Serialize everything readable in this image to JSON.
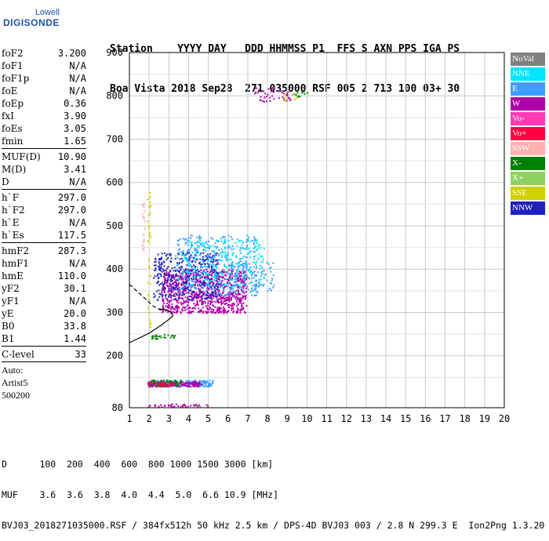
{
  "logo": {
    "top": "Lowell",
    "main": "DIGISONDE"
  },
  "header": {
    "line1": "Station    YYYY DAY   DDD HHMMSS P1  FFS S AXN PPS IGA PS",
    "line2": "Boa Vista 2018 Sep28  271 035000 RSF 005 2 713 100 03+ 30"
  },
  "params": [
    {
      "label": "foF2",
      "value": "3.200"
    },
    {
      "label": "foF1",
      "value": "N/A"
    },
    {
      "label": "foF1p",
      "value": "N/A"
    },
    {
      "label": "foE",
      "value": "N/A"
    },
    {
      "label": "foEp",
      "value": "0.36"
    },
    {
      "label": "fxI",
      "value": "3.90"
    },
    {
      "label": "foEs",
      "value": "3.05"
    },
    {
      "label": "fmin",
      "value": "1.65"
    },
    {
      "label": "MUF(D)",
      "value": "10.90"
    },
    {
      "label": "M(D)",
      "value": "3.41"
    },
    {
      "label": "D",
      "value": "N/A"
    },
    {
      "label": "h`F",
      "value": "297.0"
    },
    {
      "label": "h`F2",
      "value": "297.0"
    },
    {
      "label": "h`E",
      "value": "N/A"
    },
    {
      "label": "h`Es",
      "value": "117.5"
    },
    {
      "label": "hmF2",
      "value": "287.3"
    },
    {
      "label": "hmF1",
      "value": "N/A"
    },
    {
      "label": "hmE",
      "value": "110.0"
    },
    {
      "label": "yF2",
      "value": "30.1"
    },
    {
      "label": "yF1",
      "value": "N/A"
    },
    {
      "label": "yE",
      "value": "20.0"
    },
    {
      "label": "B0",
      "value": "33.8"
    },
    {
      "label": "B1",
      "value": "1.44"
    },
    {
      "label": "C-level",
      "value": "33"
    }
  ],
  "auto": {
    "line1": "Auto:",
    "line2": "Artist5",
    "line3": "500200"
  },
  "legend": [
    {
      "label": "NoVal",
      "color": "#808080"
    },
    {
      "label": "NNE",
      "color": "#00e5ff"
    },
    {
      "label": "E",
      "color": "#3ca0ff"
    },
    {
      "label": "W",
      "color": "#b000a8"
    },
    {
      "label": "Vo-",
      "color": "#ff3cb4"
    },
    {
      "label": "Vo+",
      "color": "#ff0040"
    },
    {
      "label": "SSW",
      "color": "#ffb0b0"
    },
    {
      "label": "X-",
      "color": "#008000"
    },
    {
      "label": "X+",
      "color": "#90d060"
    },
    {
      "label": "SSE",
      "color": "#d0d000"
    },
    {
      "label": "NNW",
      "color": "#2020c0"
    }
  ],
  "bottom": {
    "line1": "D      100  200  400  600  800 1000 1500 3000 [km]",
    "line2": "MUF    3.6  3.6  3.8  4.0  4.4  5.0  6.6 10.9 [MHz]",
    "line3": "BVJ03_2018271035000.RSF / 384fx512h 50 kHz 2.5 km / DPS-4D BVJ03 003 / 2.8 N 299.3 E  Ion2Png 1.3.20"
  },
  "chart_data": {
    "type": "scatter",
    "xlim": [
      1,
      20
    ],
    "ylim": [
      80,
      900
    ],
    "x_ticks": [
      1,
      2,
      3,
      4,
      5,
      6,
      7,
      8,
      9,
      10,
      11,
      12,
      13,
      14,
      15,
      16,
      17,
      18,
      19,
      20
    ],
    "y_ticks": [
      80,
      200,
      300,
      400,
      500,
      600,
      700,
      800,
      900
    ],
    "grid": true,
    "clusters": [
      {
        "name": "F2 trace W",
        "color": "#b000a8",
        "x": [
          2.6,
          6.9
        ],
        "y": [
          300,
          400
        ],
        "count": 900
      },
      {
        "name": "F2 trace NNW",
        "color": "#2020c0",
        "x": [
          2.2,
          5.5
        ],
        "y": [
          330,
          440
        ],
        "count": 380
      },
      {
        "name": "F2 upper E",
        "color": "#3ca0ff",
        "x": [
          3.3,
          7.5
        ],
        "y": [
          340,
          480
        ],
        "count": 320
      },
      {
        "name": "F2 upper NNE",
        "color": "#00e5ff",
        "x": [
          3.6,
          7.8
        ],
        "y": [
          360,
          470
        ],
        "count": 240
      },
      {
        "name": "F2 extension",
        "color": "#3ca0ff",
        "x": [
          6.0,
          8.3
        ],
        "y": [
          350,
          420
        ],
        "count": 120
      },
      {
        "name": "Es E",
        "color": "#3ca0ff",
        "x": [
          1.9,
          5.2
        ],
        "y": [
          130,
          145
        ],
        "count": 220
      },
      {
        "name": "Es W",
        "color": "#b000a8",
        "x": [
          1.9,
          4.6
        ],
        "y": [
          130,
          142
        ],
        "count": 180
      },
      {
        "name": "Es X-",
        "color": "#008000",
        "x": [
          2.0,
          3.6
        ],
        "y": [
          132,
          145
        ],
        "count": 60
      },
      {
        "name": "Es Vo+",
        "color": "#ff0040",
        "x": [
          1.9,
          3.2
        ],
        "y": [
          130,
          140
        ],
        "count": 40
      },
      {
        "name": "low echoes",
        "color": "#b000a8",
        "x": [
          1.9,
          5.0
        ],
        "y": [
          83,
          90
        ],
        "count": 40
      },
      {
        "name": "2F2 W",
        "color": "#b000a8",
        "x": [
          7.3,
          9.2
        ],
        "y": [
          788,
          820
        ],
        "count": 45
      },
      {
        "name": "2F2 X-",
        "color": "#008000",
        "x": [
          9.3,
          10.0
        ],
        "y": [
          795,
          815
        ],
        "count": 12
      },
      {
        "name": "2F2 SSE",
        "color": "#d0d000",
        "x": [
          8.8,
          9.6
        ],
        "y": [
          790,
          805
        ],
        "count": 10
      },
      {
        "name": "SSE vertical",
        "color": "#d0d000",
        "x": [
          1.9,
          2.05
        ],
        "y": [
          260,
          580
        ],
        "count": 40
      },
      {
        "name": "SSW vertical",
        "color": "#ffb0b0",
        "x": [
          1.6,
          1.75
        ],
        "y": [
          440,
          560
        ],
        "count": 25
      },
      {
        "name": "X- low",
        "color": "#008000",
        "x": [
          2.1,
          3.3
        ],
        "y": [
          240,
          250
        ],
        "count": 25
      }
    ],
    "profile_solid": [
      [
        1,
        230
      ],
      [
        2.0,
        252
      ],
      [
        2.6,
        270
      ],
      [
        3.0,
        284
      ],
      [
        3.2,
        292
      ],
      [
        3.15,
        300
      ],
      [
        2.9,
        306
      ],
      [
        2.5,
        308
      ]
    ],
    "profile_dashed": [
      [
        1,
        365
      ],
      [
        1.6,
        340
      ],
      [
        2.2,
        315
      ],
      [
        2.6,
        305
      ]
    ]
  }
}
